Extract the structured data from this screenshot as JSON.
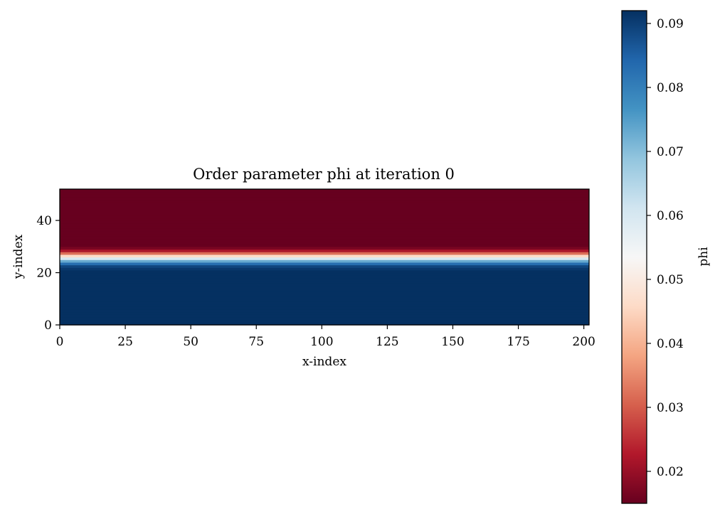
{
  "chart_data": {
    "type": "heatmap",
    "title": "Order parameter phi at iteration 0",
    "xlabel": "x-index",
    "ylabel": "y-index",
    "xlim": [
      0,
      202
    ],
    "ylim": [
      0,
      52
    ],
    "x_ticks": [
      0,
      25,
      50,
      75,
      100,
      125,
      150,
      175,
      200
    ],
    "y_ticks": [
      0,
      20,
      40
    ],
    "rows_per_y": 1,
    "phi_profile_y": {
      "y": [
        0,
        1,
        2,
        3,
        4,
        5,
        6,
        7,
        8,
        9,
        10,
        11,
        12,
        13,
        14,
        15,
        16,
        17,
        18,
        19,
        20,
        21,
        22,
        23,
        24,
        25,
        26,
        27,
        28,
        29,
        30,
        31,
        32,
        33,
        34,
        35,
        36,
        37,
        38,
        39,
        40,
        41,
        42,
        43,
        44,
        45,
        46,
        47,
        48,
        49,
        50,
        51
      ],
      "phi": [
        0.092,
        0.092,
        0.092,
        0.092,
        0.092,
        0.092,
        0.092,
        0.092,
        0.092,
        0.092,
        0.092,
        0.092,
        0.092,
        0.092,
        0.092,
        0.092,
        0.092,
        0.092,
        0.092,
        0.092,
        0.092,
        0.091,
        0.089,
        0.083,
        0.073,
        0.06,
        0.046,
        0.032,
        0.022,
        0.017,
        0.015,
        0.015,
        0.015,
        0.015,
        0.015,
        0.015,
        0.015,
        0.015,
        0.015,
        0.015,
        0.015,
        0.015,
        0.015,
        0.015,
        0.015,
        0.015,
        0.015,
        0.015,
        0.015,
        0.015,
        0.015,
        0.015
      ]
    },
    "colorbar": {
      "label": "phi",
      "colormap": "RdBu",
      "range": [
        0.015,
        0.092
      ],
      "ticks": [
        0.02,
        0.03,
        0.04,
        0.05,
        0.06,
        0.07,
        0.08,
        0.09
      ],
      "tick_labels": [
        "0.02",
        "0.03",
        "0.04",
        "0.05",
        "0.06",
        "0.07",
        "0.08",
        "0.09"
      ],
      "colors": [
        "#67001f",
        "#b2182b",
        "#d6604d",
        "#f4a582",
        "#fddbc7",
        "#f7f7f7",
        "#d1e5f0",
        "#92c5de",
        "#4393c3",
        "#2166ac",
        "#053061"
      ]
    },
    "grid": false
  }
}
